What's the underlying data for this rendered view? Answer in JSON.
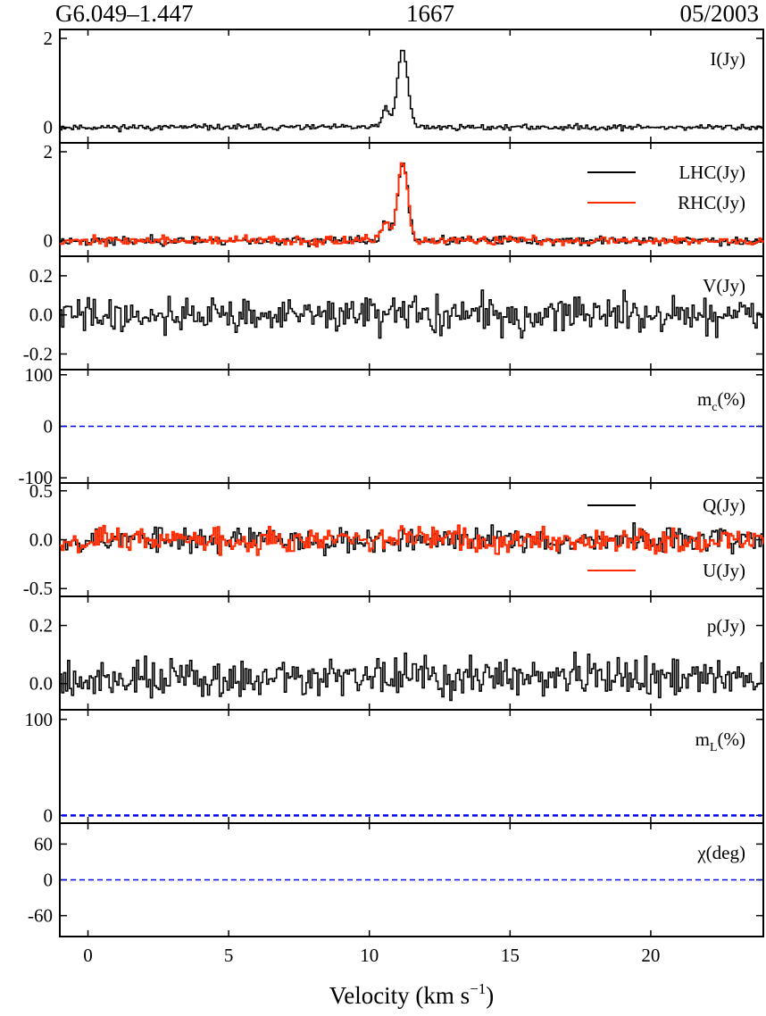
{
  "header": {
    "source": "G6.049–1.447",
    "frequency": "1667",
    "date": "05/2003"
  },
  "colors": {
    "black_series": "#000000",
    "red_series": "#ff2a00",
    "zero_line": "#0000ff"
  },
  "chart_data": {
    "type": "line",
    "x_axis": {
      "label": "Velocity (km s",
      "label_sup": "−1",
      "label_end": ")",
      "range": [
        -1.0,
        24.0
      ],
      "ticks": [
        0,
        5,
        10,
        15,
        20
      ],
      "tick_labels": [
        "0",
        "5",
        "10",
        "15",
        "20"
      ]
    },
    "panels": [
      {
        "id": "stokes-i",
        "label": "I(Jy)",
        "ylim": [
          -0.35,
          2.2
        ],
        "yticks": [
          0,
          2
        ],
        "ytick_labels": [
          "0",
          "2"
        ],
        "noise": 0.045,
        "series": [
          {
            "name": "I(Jy)",
            "color": "#000000",
            "peaks": [
              [
                10.55,
                0.45,
                0.12
              ],
              [
                11.15,
                1.75,
                0.18
              ]
            ],
            "seed": 11
          }
        ]
      },
      {
        "id": "stokes-lhc-rhc",
        "label": "",
        "ylim": [
          -0.35,
          2.2
        ],
        "yticks": [
          0,
          2
        ],
        "ytick_labels": [
          "0",
          "2"
        ],
        "noise": 0.07,
        "legend": [
          {
            "text": "LHC(Jy)",
            "color": "#000000"
          },
          {
            "text": "RHC(Jy)",
            "color": "#ff2a00"
          }
        ],
        "series": [
          {
            "name": "LHC(Jy)",
            "color": "#000000",
            "peaks": [
              [
                10.55,
                0.45,
                0.12
              ],
              [
                11.15,
                1.75,
                0.18
              ]
            ],
            "seed": 23
          },
          {
            "name": "RHC(Jy)",
            "color": "#ff2a00",
            "peaks": [
              [
                10.55,
                0.45,
                0.12
              ],
              [
                11.15,
                1.72,
                0.18
              ]
            ],
            "seed": 37
          }
        ]
      },
      {
        "id": "stokes-v",
        "label": "V(Jy)",
        "ylim": [
          -0.28,
          0.3
        ],
        "yticks": [
          -0.2,
          0.0,
          0.2
        ],
        "ytick_labels": [
          "-0.2",
          "0.0",
          "0.2"
        ],
        "noise": 0.065,
        "series": [
          {
            "name": "V(Jy)",
            "color": "#000000",
            "peaks": [],
            "seed": 41
          }
        ]
      },
      {
        "id": "frac-circular",
        "label": "m",
        "label_sub": "c",
        "label_end": "(%)",
        "ylim": [
          -110,
          110
        ],
        "yticks": [
          -100,
          0,
          100
        ],
        "ytick_labels": [
          "-100",
          "0",
          "100"
        ],
        "zero_line": true,
        "series": []
      },
      {
        "id": "stokes-qu",
        "label": "",
        "ylim": [
          -0.58,
          0.58
        ],
        "yticks": [
          -0.5,
          0.0,
          0.5
        ],
        "ytick_labels": [
          "-0.5",
          "0.0",
          "0.5"
        ],
        "noise": 0.09,
        "legend": [
          {
            "text": "Q(Jy)",
            "color": "#000000",
            "position": "top-right"
          },
          {
            "text": "U(Jy)",
            "color": "#ff2a00",
            "position": "bottom-right"
          }
        ],
        "series": [
          {
            "name": "Q(Jy)",
            "color": "#000000",
            "peaks": [],
            "seed": 53
          },
          {
            "name": "U(Jy)",
            "color": "#ff2a00",
            "peaks": [],
            "seed": 67
          }
        ]
      },
      {
        "id": "pol-intensity",
        "label": "p(Jy)",
        "ylim": [
          -0.09,
          0.3
        ],
        "yticks": [
          0.0,
          0.2
        ],
        "ytick_labels": [
          "0.0",
          "0.2"
        ],
        "noise": 0.05,
        "offset": 0.02,
        "series": [
          {
            "name": "p(Jy)",
            "color": "#000000",
            "peaks": [],
            "seed": 79
          }
        ]
      },
      {
        "id": "frac-linear",
        "label": "m",
        "label_sub": "L",
        "label_end": "(%)",
        "ylim": [
          -8,
          110
        ],
        "yticks": [
          0,
          100
        ],
        "ytick_labels": [
          "0",
          "100"
        ],
        "zero_line": true,
        "zero_line_heavy": true,
        "series": []
      },
      {
        "id": "pol-angle",
        "label": "χ(deg)",
        "ylim": [
          -95,
          95
        ],
        "yticks": [
          -60,
          0,
          60
        ],
        "ytick_labels": [
          "-60",
          "0",
          "60"
        ],
        "zero_line": true,
        "series": []
      }
    ]
  }
}
